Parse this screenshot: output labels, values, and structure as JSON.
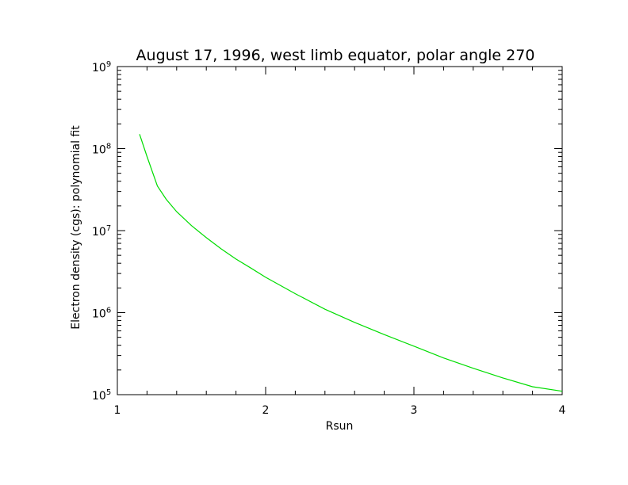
{
  "chart_data": {
    "type": "line",
    "title": "August 17, 1996, west limb equator, polar angle 270",
    "xlabel": "Rsun",
    "ylabel": "Electron density (cgs): polynomial fit",
    "xlim": [
      1,
      4
    ],
    "ylim": [
      100000,
      1000000000
    ],
    "yscale": "log",
    "grid": false,
    "x_ticks": [
      {
        "value": 1,
        "label": "1"
      },
      {
        "value": 2,
        "label": "2"
      },
      {
        "value": 3,
        "label": "3"
      },
      {
        "value": 4,
        "label": "4"
      }
    ],
    "y_ticks": [
      {
        "value": 100000,
        "base": "10",
        "exp": "5"
      },
      {
        "value": 1000000,
        "base": "10",
        "exp": "6"
      },
      {
        "value": 10000000,
        "base": "10",
        "exp": "7"
      },
      {
        "value": 100000000,
        "base": "10",
        "exp": "8"
      },
      {
        "value": 1000000000,
        "base": "10",
        "exp": "9"
      }
    ],
    "series": [
      {
        "color": "#00dd00",
        "x": [
          1.15,
          1.2,
          1.27,
          1.33,
          1.4,
          1.5,
          1.6,
          1.7,
          1.8,
          1.9,
          2.0,
          2.2,
          2.4,
          2.6,
          2.8,
          3.0,
          3.2,
          3.4,
          3.6,
          3.8,
          4.0
        ],
        "y": [
          150000000,
          80000000,
          35000000,
          24000000,
          17000000,
          11500000,
          8200000,
          6000000,
          4500000,
          3500000,
          2700000,
          1700000,
          1100000,
          760000,
          540000,
          390000,
          280000,
          210000,
          160000,
          125000,
          110000
        ]
      }
    ]
  }
}
